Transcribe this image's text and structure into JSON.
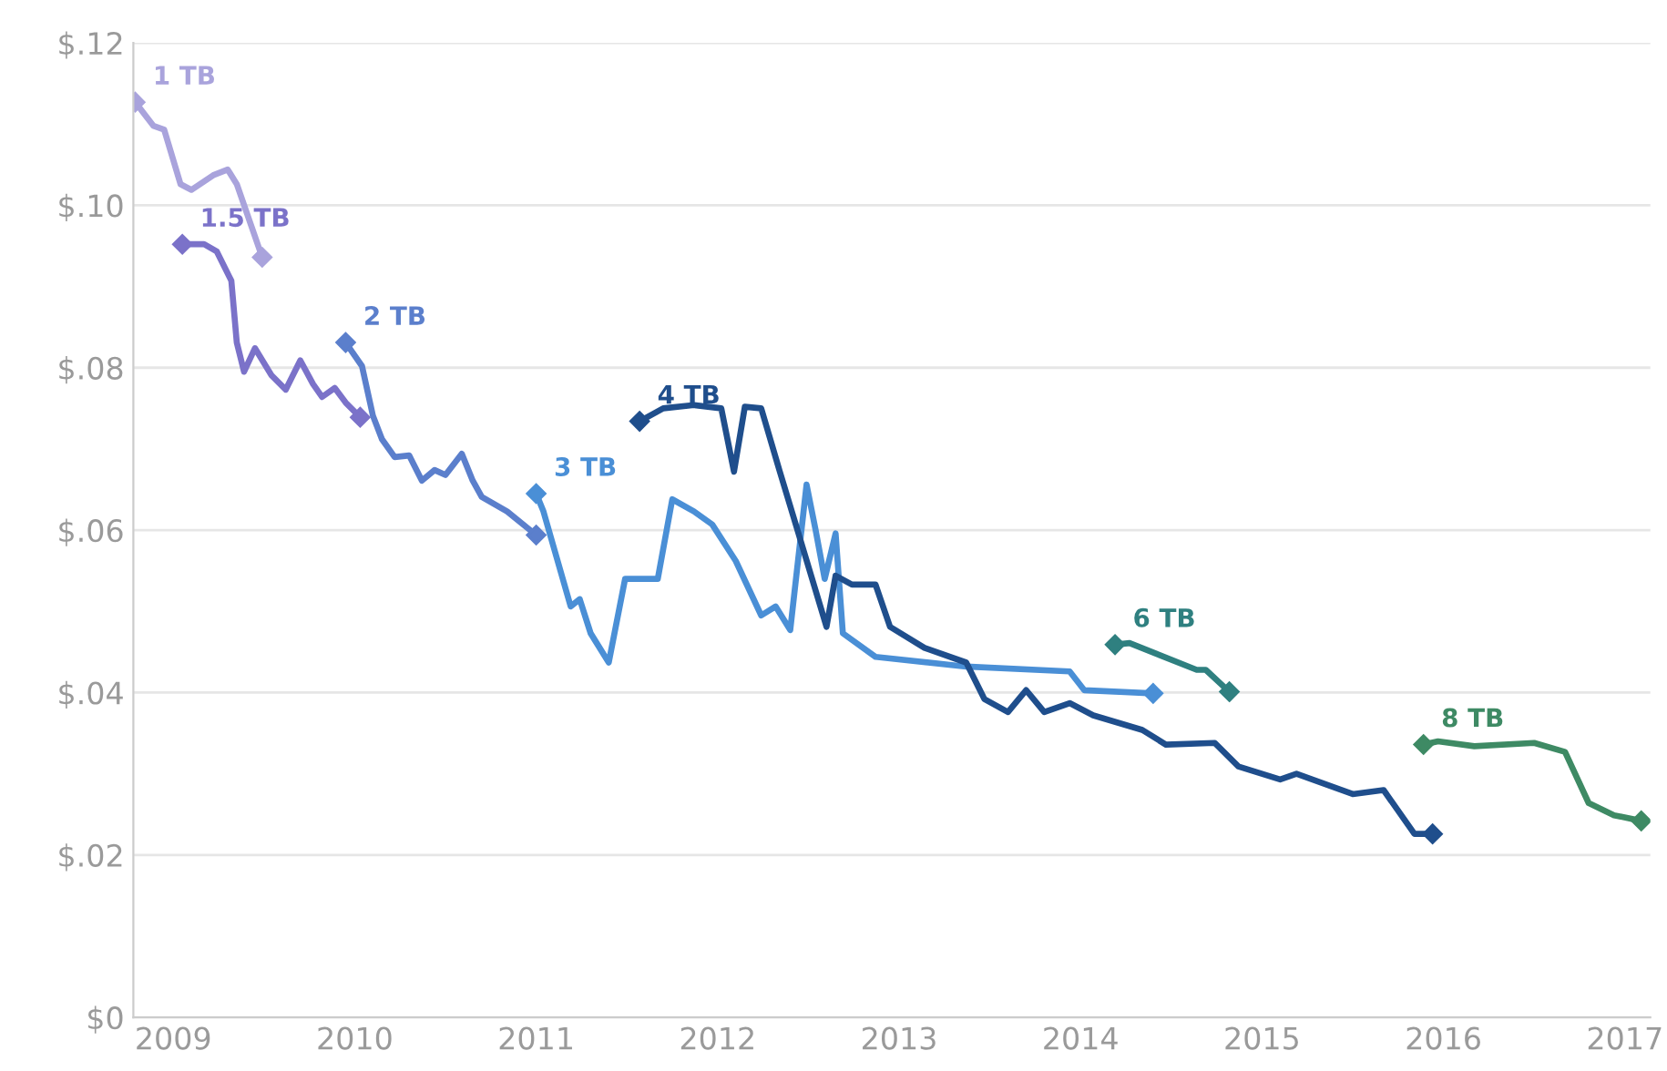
{
  "chart_data": {
    "type": "line",
    "xlim": [
      2008.78,
      2017.14
    ],
    "ylim": [
      0,
      0.12
    ],
    "xticks": [
      2009,
      2010,
      2011,
      2012,
      2013,
      2014,
      2015,
      2016,
      2017
    ],
    "yticks": [
      {
        "value": 0,
        "label": "$0"
      },
      {
        "value": 0.02,
        "label": "$.02"
      },
      {
        "value": 0.04,
        "label": "$.04"
      },
      {
        "value": 0.06,
        "label": "$.06"
      },
      {
        "value": 0.08,
        "label": "$.08"
      },
      {
        "value": 0.1,
        "label": "$.10"
      },
      {
        "value": 0.12,
        "label": "$.12"
      }
    ],
    "grid": "y",
    "legend": false,
    "line_style": "solid",
    "series": [
      {
        "name": "1 TB",
        "color": "#a9a3dc",
        "x": [
          2008.79,
          2008.89,
          2008.95,
          2009.04,
          2009.1,
          2009.22,
          2009.3,
          2009.35,
          2009.49
        ],
        "values": [
          0.1127,
          0.1098,
          0.1093,
          0.1026,
          0.1019,
          0.1037,
          0.1044,
          0.1026,
          0.0936
        ]
      },
      {
        "name": "1.5 TB",
        "color": "#7b72c9",
        "x": [
          2009.05,
          2009.17,
          2009.24,
          2009.32,
          2009.35,
          2009.39,
          2009.45,
          2009.54,
          2009.62,
          2009.7,
          2009.77,
          2009.82,
          2009.89,
          2009.95,
          2010.03
        ],
        "values": [
          0.0952,
          0.0952,
          0.0943,
          0.0907,
          0.0831,
          0.0795,
          0.0824,
          0.0791,
          0.0773,
          0.0809,
          0.078,
          0.0764,
          0.0775,
          0.0757,
          0.0739
        ]
      },
      {
        "name": "2 TB",
        "color": "#5b7fcc",
        "x": [
          2009.95,
          2010.04,
          2010.1,
          2010.15,
          2010.22,
          2010.3,
          2010.37,
          2010.44,
          2010.5,
          2010.59,
          2010.65,
          2010.7,
          2010.84,
          2011.0
        ],
        "values": [
          0.0831,
          0.0802,
          0.0741,
          0.0712,
          0.069,
          0.0692,
          0.0661,
          0.0674,
          0.0668,
          0.0694,
          0.0661,
          0.0641,
          0.0623,
          0.0594
        ]
      },
      {
        "name": "3 TB",
        "color": "#4a8fd6",
        "x": [
          2011.0,
          2011.04,
          2011.19,
          2011.24,
          2011.3,
          2011.4,
          2011.49,
          2011.59,
          2011.67,
          2011.75,
          2011.87,
          2011.97,
          2012.1,
          2012.24,
          2012.32,
          2012.4,
          2012.49,
          2012.54,
          2012.59,
          2012.65,
          2012.69,
          2012.87,
          2013.37,
          2013.94,
          2014.02,
          2014.4
        ],
        "values": [
          0.0645,
          0.0623,
          0.0506,
          0.0515,
          0.0473,
          0.0437,
          0.054,
          0.054,
          0.054,
          0.0638,
          0.0623,
          0.0607,
          0.0562,
          0.0495,
          0.0506,
          0.0477,
          0.0656,
          0.06,
          0.054,
          0.0596,
          0.0473,
          0.0444,
          0.0432,
          0.0426,
          0.0403,
          0.0399
        ]
      },
      {
        "name": "4 TB",
        "color": "#1f4e8c",
        "x": [
          2011.57,
          2011.7,
          2011.87,
          2012.02,
          2012.09,
          2012.15,
          2012.24,
          2012.34,
          2012.44,
          2012.6,
          2012.65,
          2012.74,
          2012.87,
          2012.95,
          2013.14,
          2013.37,
          2013.47,
          2013.6,
          2013.7,
          2013.8,
          2013.94,
          2014.07,
          2014.34,
          2014.47,
          2014.74,
          2014.87,
          2015.1,
          2015.19,
          2015.5,
          2015.67,
          2015.84,
          2015.94
        ],
        "values": [
          0.0734,
          0.075,
          0.0754,
          0.075,
          0.0672,
          0.0752,
          0.075,
          0.0674,
          0.06,
          0.0481,
          0.0544,
          0.0533,
          0.0533,
          0.0481,
          0.0455,
          0.0437,
          0.0392,
          0.0376,
          0.0403,
          0.0376,
          0.0387,
          0.0372,
          0.0354,
          0.0336,
          0.0338,
          0.0309,
          0.0293,
          0.03,
          0.0275,
          0.028,
          0.0226,
          0.0226
        ]
      },
      {
        "name": "6 TB",
        "color": "#2f8080",
        "x": [
          2014.19,
          2014.27,
          2014.64,
          2014.69,
          2014.82
        ],
        "values": [
          0.0459,
          0.0461,
          0.0428,
          0.0428,
          0.0401
        ]
      },
      {
        "name": "8 TB",
        "color": "#3e8a64",
        "x": [
          2015.89,
          2015.97,
          2016.17,
          2016.5,
          2016.67,
          2016.8,
          2016.94,
          2017.09
        ],
        "values": [
          0.0336,
          0.034,
          0.0334,
          0.0338,
          0.0327,
          0.0264,
          0.0249,
          0.0242
        ]
      }
    ]
  }
}
